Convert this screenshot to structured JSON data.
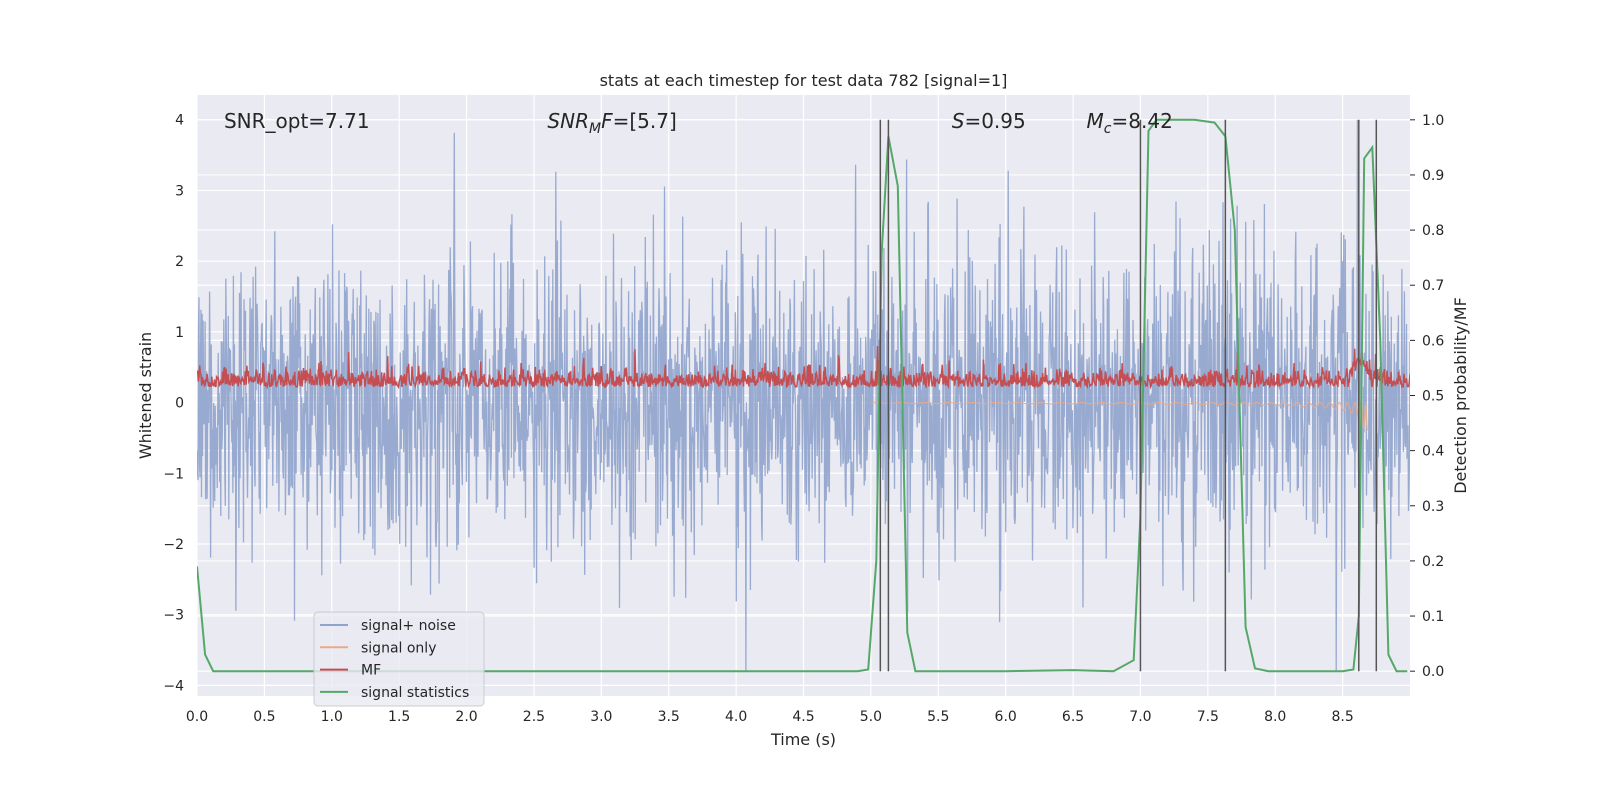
{
  "chart_data": {
    "type": "line",
    "title": "stats at each timestep for test data 782 [signal=1]",
    "xlabel": "Time (s)",
    "ylabel": "Whitened strain",
    "ylabel_right": "Detection probability/MF",
    "xlim": [
      0.0,
      9.0
    ],
    "ylim": [
      -4.15,
      4.35
    ],
    "ylim_right": [
      -0.045,
      1.045
    ],
    "xticks": [
      "0.0",
      "0.5",
      "1.0",
      "1.5",
      "2.0",
      "2.5",
      "3.0",
      "3.5",
      "4.0",
      "4.5",
      "5.0",
      "5.5",
      "6.0",
      "6.5",
      "7.0",
      "7.5",
      "8.0",
      "8.5"
    ],
    "yticks": [
      "4",
      "3",
      "2",
      "1",
      "0",
      "−1",
      "−2",
      "−3",
      "−4"
    ],
    "yticks_right": [
      "1.0",
      "0.9",
      "0.8",
      "0.7",
      "0.6",
      "0.5",
      "0.4",
      "0.3",
      "0.2",
      "0.1",
      "0.0"
    ],
    "grid": true,
    "legend_position": "lower-left",
    "annotations": [
      {
        "id": "snr_opt",
        "text": "SNR_opt=7.71",
        "x": 0.2
      },
      {
        "id": "snr_mf",
        "text": "SNR_MF=[5.7]",
        "x": 2.6
      },
      {
        "id": "s",
        "text": "S=0.95",
        "x": 5.6
      },
      {
        "id": "mc",
        "text": "M_c=8.42",
        "x": 6.6
      }
    ],
    "vertical_lines_x": [
      5.07,
      5.13,
      7.0,
      7.63,
      8.62,
      8.75
    ],
    "series": [
      {
        "name": "signal+ noise",
        "color": "#8fa3cc",
        "axis": "left",
        "description_range": [
          -3.8,
          4.0
        ]
      },
      {
        "name": "signal only",
        "color": "#e8a98b",
        "axis": "left"
      },
      {
        "name": "MF",
        "color": "#c44e52",
        "axis": "left"
      },
      {
        "name": "signal statistics",
        "color": "#55a868",
        "axis": "right",
        "x": [
          0.0,
          0.06,
          0.12,
          0.18,
          0.3,
          0.6,
          1.0,
          2.0,
          3.0,
          4.0,
          4.9,
          4.98,
          5.04,
          5.08,
          5.13,
          5.2,
          5.27,
          5.33,
          5.5,
          6.0,
          6.5,
          6.8,
          6.95,
          7.0,
          7.06,
          7.12,
          7.2,
          7.4,
          7.55,
          7.63,
          7.7,
          7.78,
          7.85,
          7.95,
          8.2,
          8.5,
          8.58,
          8.62,
          8.66,
          8.72,
          8.78,
          8.84,
          8.9,
          8.98
        ],
        "values": [
          0.19,
          0.03,
          0.0,
          0.0,
          0.0,
          0.0,
          0.0,
          0.0,
          0.0,
          0.0,
          0.0,
          0.003,
          0.2,
          0.76,
          0.97,
          0.88,
          0.07,
          0.0,
          0.0,
          0.0,
          0.002,
          0.0,
          0.02,
          0.28,
          0.98,
          1.0,
          1.0,
          1.0,
          0.995,
          0.97,
          0.8,
          0.08,
          0.005,
          0.0,
          0.0,
          0.0,
          0.003,
          0.1,
          0.93,
          0.95,
          0.6,
          0.03,
          0.0,
          0.0
        ]
      }
    ]
  }
}
